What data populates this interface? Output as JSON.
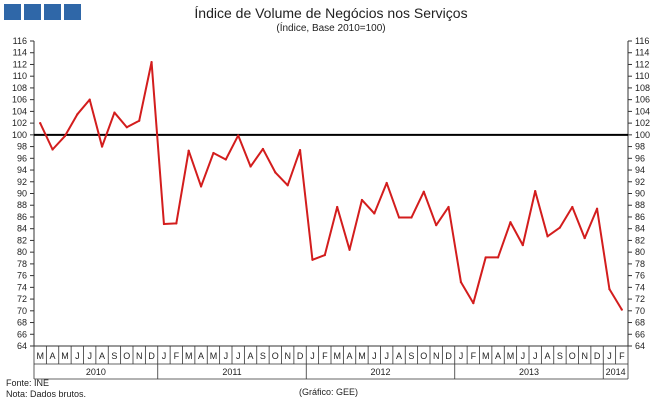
{
  "header": {
    "logo": [
      "square",
      "square",
      "square",
      "square"
    ]
  },
  "footer": {
    "source": "Fonte: INE",
    "note": "Nota: Dados brutos.",
    "credit": "(Gráfico: GEE)"
  },
  "colors": {
    "series": "#d31d1d",
    "reference_line": "#000000",
    "axis": "#333333",
    "logo": "#2f67a8"
  },
  "chart_data": {
    "type": "line",
    "title": "Índice de Volume de Negócios nos Serviços",
    "subtitle": "(Índice, Base 2010=100)",
    "xlabel": "",
    "ylabel": "",
    "ylim": [
      64,
      116
    ],
    "ytick_step": 2,
    "y_axis_both_sides": true,
    "grid": false,
    "legend": "none",
    "reference_line": 100,
    "months": [
      "M",
      "A",
      "M",
      "J",
      "J",
      "A",
      "S",
      "O",
      "N",
      "D",
      "J",
      "F",
      "M",
      "A",
      "M",
      "J",
      "J",
      "A",
      "S",
      "O",
      "N",
      "D",
      "J",
      "F",
      "M",
      "A",
      "M",
      "J",
      "J",
      "A",
      "S",
      "O",
      "N",
      "D",
      "J",
      "F",
      "M",
      "A",
      "M",
      "J",
      "J",
      "A",
      "S",
      "O",
      "N",
      "D",
      "J",
      "F"
    ],
    "years": [
      {
        "label": "2010",
        "start": 0,
        "count": 10
      },
      {
        "label": "2011",
        "start": 10,
        "count": 12
      },
      {
        "label": "2012",
        "start": 22,
        "count": 12
      },
      {
        "label": "2013",
        "start": 34,
        "count": 12
      },
      {
        "label": "2014",
        "start": 46,
        "count": 2
      }
    ],
    "series": [
      {
        "values": [
          102.0,
          97.5,
          99.8,
          103.5,
          106.0,
          98.0,
          103.8,
          101.3,
          102.4,
          112.4,
          84.8,
          84.9,
          97.3,
          91.2,
          96.9,
          95.8,
          99.9,
          94.6,
          97.6,
          93.6,
          91.4,
          97.4,
          78.7,
          79.5,
          87.7,
          80.4,
          88.9,
          86.6,
          91.8,
          85.9,
          85.9,
          90.3,
          84.6,
          87.7,
          74.9,
          71.3,
          79.1,
          79.1,
          85.1,
          81.2,
          90.4,
          82.7,
          84.2,
          87.7,
          82.4,
          87.4,
          73.7,
          70.2
        ]
      }
    ]
  }
}
